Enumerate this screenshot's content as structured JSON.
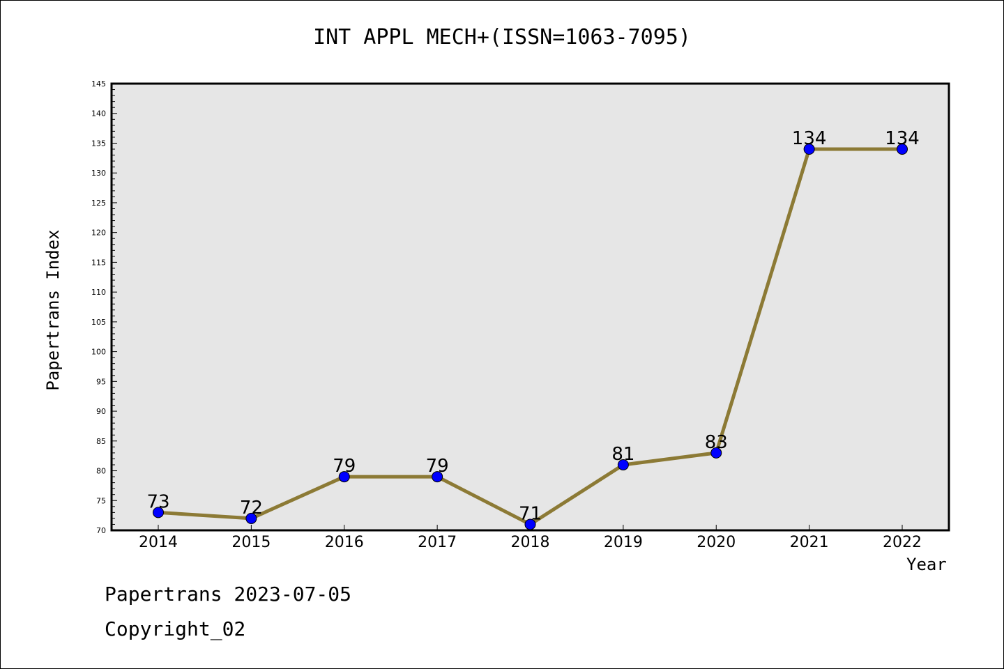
{
  "chart_data": {
    "type": "line",
    "title": "INT APPL MECH+(ISSN=1063-7095)",
    "xlabel": "Year",
    "ylabel": "Papertrans Index",
    "categories": [
      "2014",
      "2015",
      "2016",
      "2017",
      "2018",
      "2019",
      "2020",
      "2021",
      "2022"
    ],
    "series": [
      {
        "values": [
          73,
          72,
          79,
          79,
          71,
          81,
          83,
          134,
          134
        ]
      }
    ],
    "ylim": [
      70,
      145
    ],
    "ytick_step": 5,
    "y_minor_step": 1,
    "grid": false,
    "plot_background": "#e6e6e6",
    "line_color": "#8c7a35",
    "marker_color": "#0000ff"
  },
  "footer": {
    "line1": "Papertrans 2023-07-05",
    "line2": "Copyright_02"
  }
}
